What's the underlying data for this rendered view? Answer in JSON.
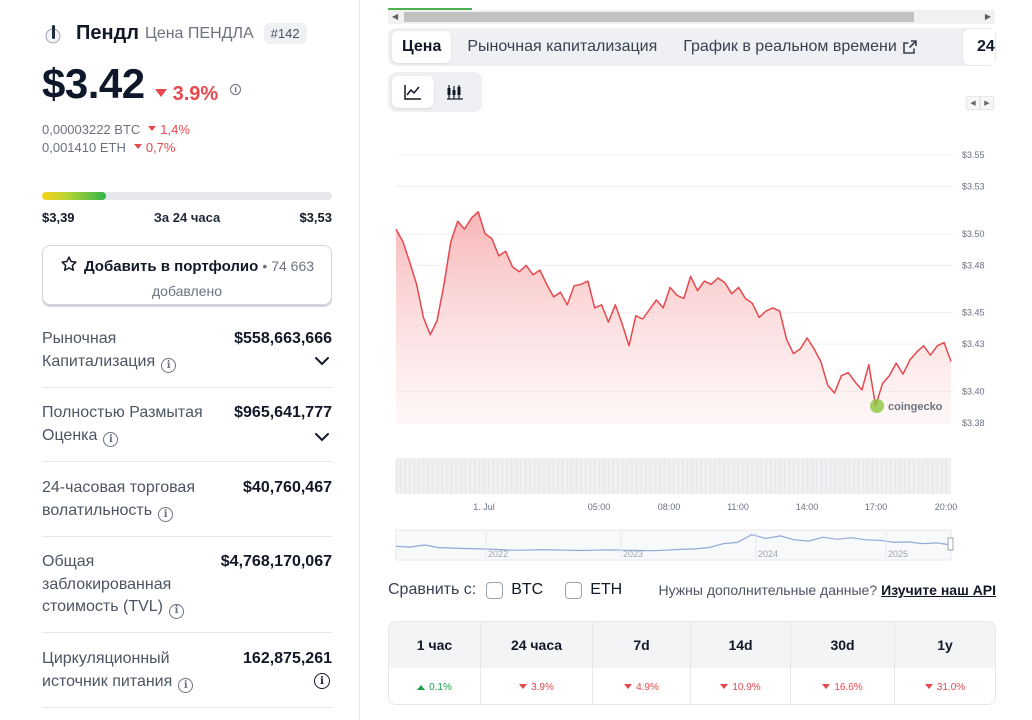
{
  "coin": {
    "name": "Пендл",
    "sub": "Цена ПЕНДЛА",
    "rank": "#142",
    "price": "$3.42",
    "change_24h": "3.9%",
    "btc_price": "0,00003222 BTC",
    "btc_change": "1,4%",
    "eth_price": "0,001410 ETH",
    "eth_change": "0,7%"
  },
  "range": {
    "low": "$3,39",
    "label": "За 24 часа",
    "high": "$3,53",
    "fill_fraction": 0.22
  },
  "portfolio": {
    "label": "Добавить в портфолио",
    "separator": "•",
    "count": "74 663",
    "suffix": "добавлено"
  },
  "stats": [
    {
      "label": "Рыночная Капитализация",
      "value": "$558,663,666",
      "expand": true
    },
    {
      "label": "Полностью Размытая Оценка",
      "value": "$965,641,777",
      "expand": true
    },
    {
      "label": "24-часовая торговая волатильность",
      "value": "$40,760,467",
      "expand": false
    },
    {
      "label": "Общая заблокированная стоимость (TVL)",
      "value": "$4,768,170,067",
      "expand": false
    },
    {
      "label": "Циркуляционный источник питания",
      "value": "162,875,261",
      "expand": false
    }
  ],
  "tabs": [
    {
      "label": "Цена",
      "active": true
    },
    {
      "label": "Рыночная капитализация",
      "active": false
    },
    {
      "label": "График в реальном времени",
      "active": false,
      "external": true
    }
  ],
  "tab_more": "24",
  "chart_data": {
    "type": "line",
    "y_ticks": [
      "$3.55",
      "$3.53",
      "$3.50",
      "$3.48",
      "$3.45",
      "$3.43",
      "$3.40",
      "$3.38"
    ],
    "ylim": [
      3.38,
      3.55
    ],
    "x_ticks": [
      "1. Jul",
      "05:00",
      "08:00",
      "11:00",
      "14:00",
      "17:00",
      "20:00"
    ],
    "watermark": "coingecko",
    "series": [
      {
        "values": [
          3.503,
          3.495,
          3.482,
          3.468,
          3.447,
          3.436,
          3.445,
          3.468,
          3.495,
          3.508,
          3.503,
          3.51,
          3.514,
          3.5,
          3.497,
          3.486,
          3.489,
          3.479,
          3.476,
          3.48,
          3.474,
          3.477,
          3.468,
          3.46,
          3.463,
          3.455,
          3.467,
          3.468,
          3.47,
          3.453,
          3.455,
          3.444,
          3.455,
          3.443,
          3.429,
          3.448,
          3.446,
          3.452,
          3.458,
          3.453,
          3.466,
          3.461,
          3.459,
          3.473,
          3.464,
          3.47,
          3.468,
          3.472,
          3.469,
          3.462,
          3.466,
          3.459,
          3.456,
          3.447,
          3.451,
          3.453,
          3.451,
          3.433,
          3.424,
          3.427,
          3.434,
          3.427,
          3.419,
          3.404,
          3.399,
          3.41,
          3.412,
          3.406,
          3.401,
          3.417,
          3.391,
          3.405,
          3.41,
          3.418,
          3.411,
          3.42,
          3.425,
          3.429,
          3.423,
          3.429,
          3.431,
          3.419
        ],
        "color": "#e5484d"
      }
    ],
    "overview_years": [
      "2022",
      "2023",
      "2024",
      "2025"
    ]
  },
  "compare": {
    "label": "Сравнить с:",
    "options": [
      "BTC",
      "ETH"
    ],
    "need_more": "Нужны дополнительные данные?",
    "api_link": "Изучите наш API"
  },
  "performance": [
    {
      "period": "1 час",
      "value": "0.1%",
      "dir": "up"
    },
    {
      "period": "24 часа",
      "value": "3.9%",
      "dir": "down"
    },
    {
      "period": "7d",
      "value": "4.9%",
      "dir": "down"
    },
    {
      "period": "14d",
      "value": "10.9%",
      "dir": "down"
    },
    {
      "period": "30d",
      "value": "16.6%",
      "dir": "down"
    },
    {
      "period": "1y",
      "value": "31.0%",
      "dir": "down"
    }
  ],
  "colors": {
    "negative": "#e5484d",
    "positive": "#16a34a",
    "accent": "#e5484d"
  }
}
